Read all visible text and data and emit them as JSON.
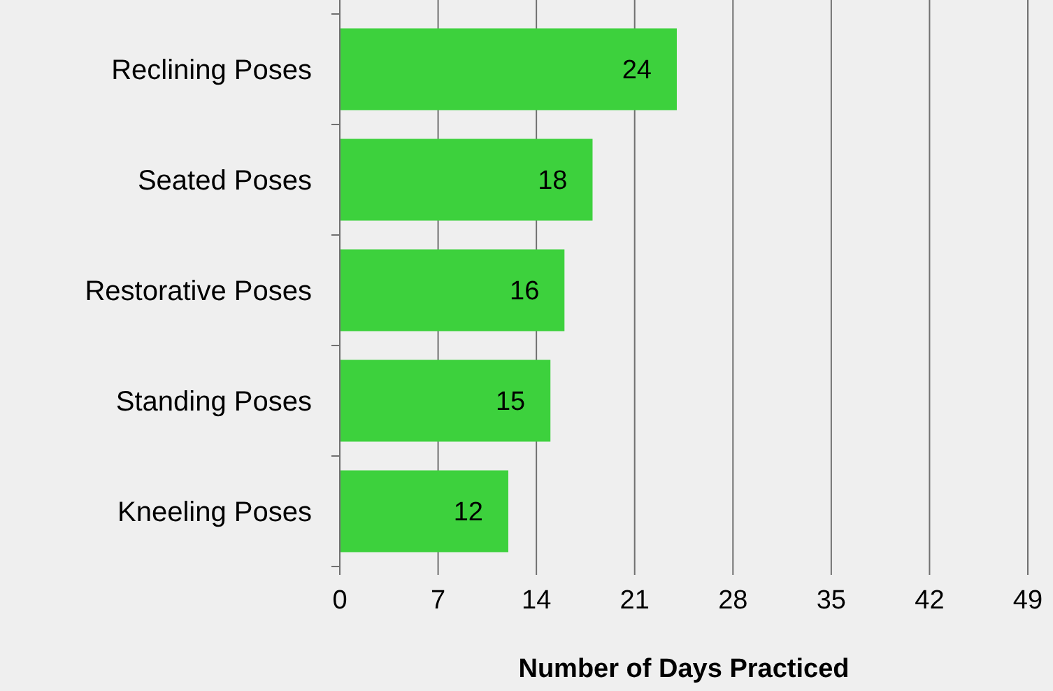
{
  "chart_data": {
    "type": "bar",
    "orientation": "horizontal",
    "xlabel": "Number of Days Practiced",
    "categories": [
      "Reclining Poses",
      "Seated Poses",
      "Restorative Poses",
      "Standing Poses",
      "Kneeling Poses"
    ],
    "values": [
      24,
      18,
      16,
      15,
      12
    ],
    "color": "#3dd13d",
    "data_labels": true,
    "xlim": [
      0,
      49
    ],
    "xticks": [
      0,
      7,
      14,
      21,
      28,
      35,
      42,
      49
    ],
    "grid": "x"
  }
}
